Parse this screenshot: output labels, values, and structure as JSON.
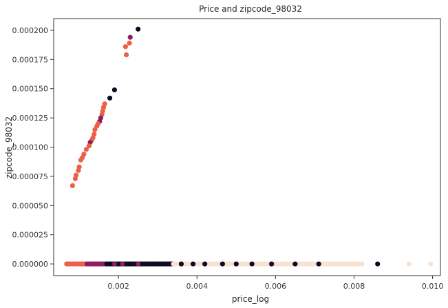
{
  "chart_data": {
    "type": "scatter",
    "title": "Price and zipcode_98032",
    "xlabel": "price_log",
    "ylabel": "zipcode_98032",
    "xlim": [
      0.00035,
      0.0102
    ],
    "ylim": [
      -1e-05,
      0.00021
    ],
    "x_ticks": [
      0.002,
      0.004,
      0.006,
      0.008,
      0.01
    ],
    "x_tick_labels": [
      "0.002",
      "0.004",
      "0.006",
      "0.008",
      "0.010"
    ],
    "y_ticks": [
      0.0,
      2.5e-05,
      5e-05,
      7.5e-05,
      0.0001,
      0.000125,
      0.00015,
      0.000175,
      0.0002
    ],
    "y_tick_labels": [
      "0.000000",
      "0.000025",
      "0.000050",
      "0.000075",
      "0.000100",
      "0.000125",
      "0.000150",
      "0.000175",
      "0.000200"
    ],
    "grid": false,
    "legend": "none",
    "colors": {
      "light": "#f8e2d2",
      "dark": "#0d0a21",
      "purple": "#8c1d63",
      "orange": "#eb6048",
      "axis": "#333333"
    },
    "points": [
      {
        "x": 0.0025,
        "y": 0.000201,
        "c": "dark"
      },
      {
        "x": 0.0023,
        "y": 0.000194,
        "c": "purple"
      },
      {
        "x": 0.00228,
        "y": 0.000189,
        "c": "orange"
      },
      {
        "x": 0.00218,
        "y": 0.000186,
        "c": "orange"
      },
      {
        "x": 0.0022,
        "y": 0.000179,
        "c": "orange"
      },
      {
        "x": 0.0019,
        "y": 0.000149,
        "c": "dark"
      },
      {
        "x": 0.00178,
        "y": 0.000142,
        "c": "dark"
      },
      {
        "x": 0.00165,
        "y": 0.000137,
        "c": "orange"
      },
      {
        "x": 0.00162,
        "y": 0.000134,
        "c": "orange"
      },
      {
        "x": 0.0016,
        "y": 0.000131,
        "c": "orange"
      },
      {
        "x": 0.00158,
        "y": 0.000128,
        "c": "orange"
      },
      {
        "x": 0.00155,
        "y": 0.000125,
        "c": "purple"
      },
      {
        "x": 0.00152,
        "y": 0.000122,
        "c": "purple"
      },
      {
        "x": 0.00148,
        "y": 0.00012,
        "c": "orange"
      },
      {
        "x": 0.00145,
        "y": 0.000118,
        "c": "orange"
      },
      {
        "x": 0.0014,
        "y": 0.000115,
        "c": "orange"
      },
      {
        "x": 0.00138,
        "y": 0.000111,
        "c": "orange"
      },
      {
        "x": 0.00135,
        "y": 0.000108,
        "c": "orange"
      },
      {
        "x": 0.00132,
        "y": 0.000106,
        "c": "orange"
      },
      {
        "x": 0.00128,
        "y": 0.000104,
        "c": "purple"
      },
      {
        "x": 0.00125,
        "y": 0.000101,
        "c": "orange"
      },
      {
        "x": 0.00118,
        "y": 9.8e-05,
        "c": "orange"
      },
      {
        "x": 0.00112,
        "y": 9.4e-05,
        "c": "orange"
      },
      {
        "x": 0.00108,
        "y": 9.1e-05,
        "c": "orange"
      },
      {
        "x": 0.00104,
        "y": 8.9e-05,
        "c": "orange"
      },
      {
        "x": 0.001,
        "y": 8.3e-05,
        "c": "orange"
      },
      {
        "x": 0.00098,
        "y": 8e-05,
        "c": "orange"
      },
      {
        "x": 0.00092,
        "y": 7.6e-05,
        "c": "orange"
      },
      {
        "x": 0.0009,
        "y": 7.3e-05,
        "c": "orange"
      },
      {
        "x": 0.00083,
        "y": 6.7e-05,
        "c": "orange"
      }
    ],
    "baseline_y": 0.0,
    "baseline_segments": [
      {
        "from": 0.00068,
        "to": 0.00118,
        "c": "orange",
        "step": 3.5e-05
      },
      {
        "from": 0.0012,
        "to": 0.0017,
        "c": "purple",
        "step": 3.5e-05
      },
      {
        "from": 0.0017,
        "to": 0.0034,
        "c": "dark",
        "step": 4e-05
      },
      {
        "from": 0.0034,
        "to": 0.0082,
        "c": "light",
        "step": 5e-05
      }
    ],
    "baseline_points": [
      {
        "x": 0.0019,
        "c": "purple"
      },
      {
        "x": 0.0021,
        "c": "purple"
      },
      {
        "x": 0.0025,
        "c": "purple"
      },
      {
        "x": 0.0036,
        "c": "dark"
      },
      {
        "x": 0.0039,
        "c": "dark"
      },
      {
        "x": 0.0042,
        "c": "dark"
      },
      {
        "x": 0.00465,
        "c": "dark"
      },
      {
        "x": 0.005,
        "c": "dark"
      },
      {
        "x": 0.0054,
        "c": "dark"
      },
      {
        "x": 0.0059,
        "c": "dark"
      },
      {
        "x": 0.0065,
        "c": "dark"
      },
      {
        "x": 0.0071,
        "c": "dark"
      },
      {
        "x": 0.0086,
        "c": "dark"
      },
      {
        "x": 0.0094,
        "c": "light"
      },
      {
        "x": 0.00995,
        "c": "light"
      }
    ]
  }
}
